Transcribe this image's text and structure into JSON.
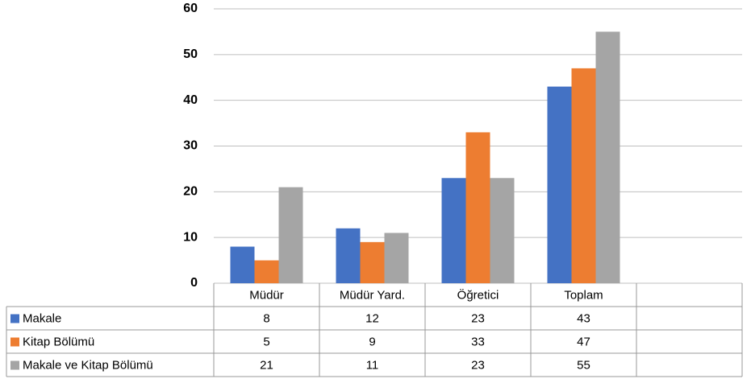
{
  "chart_data": {
    "type": "bar",
    "categories": [
      "Müdür",
      "Müdür Yard.",
      "Öğretici",
      "Toplam",
      null
    ],
    "series": [
      {
        "name": "Makale",
        "color": "#4472c4",
        "values": [
          8,
          12,
          23,
          43,
          null
        ]
      },
      {
        "name": "Kitap Bölümü",
        "color": "#ed7d31",
        "values": [
          5,
          9,
          33,
          47,
          null
        ]
      },
      {
        "name": "Makale ve Kitap Bölümü",
        "color": "#a5a5a5",
        "values": [
          21,
          11,
          23,
          55,
          null
        ]
      }
    ],
    "ylim": [
      0,
      60
    ],
    "yticks": [
      0,
      10,
      20,
      30,
      40,
      50,
      60
    ],
    "grid": true,
    "data_table": true
  }
}
